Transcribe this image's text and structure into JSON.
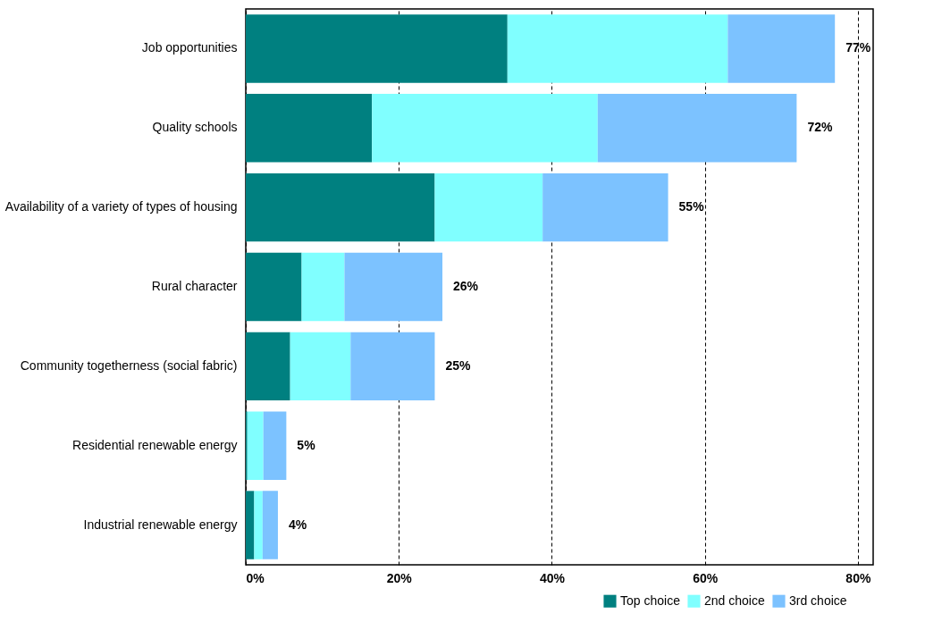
{
  "chart_data": {
    "type": "bar",
    "orientation": "horizontal",
    "stacked": true,
    "categories": [
      "Job opportunities",
      "Quality schools",
      "Availability of a variety of types of housing",
      "Rural character",
      "Community togetherness (social fabric)",
      "Residential renewable energy",
      "Industrial renewable energy"
    ],
    "series": [
      {
        "name": "Top choice",
        "color": "#008080",
        "values": [
          34.2,
          16.5,
          24.7,
          7.3,
          5.8,
          0.2,
          1.1
        ]
      },
      {
        "name": "2nd choice",
        "color": "#80ffff",
        "values": [
          28.8,
          29.5,
          14.1,
          5.6,
          7.9,
          2.1,
          1.1
        ]
      },
      {
        "name": "3rd choice",
        "color": "#7cc2ff",
        "values": [
          14,
          26,
          16.4,
          12.8,
          11,
          3,
          2
        ]
      }
    ],
    "totals": [
      "77%",
      "72%",
      "55%",
      "26%",
      "25%",
      "5%",
      "4%"
    ],
    "xlim": [
      0,
      82
    ],
    "xticks": [
      {
        "value": 0,
        "label": "0%"
      },
      {
        "value": 20,
        "label": "20%"
      },
      {
        "value": 40,
        "label": "40%"
      },
      {
        "value": 60,
        "label": "60%"
      },
      {
        "value": 80,
        "label": "80%"
      }
    ],
    "grid": "x",
    "legend": "bottom right"
  }
}
